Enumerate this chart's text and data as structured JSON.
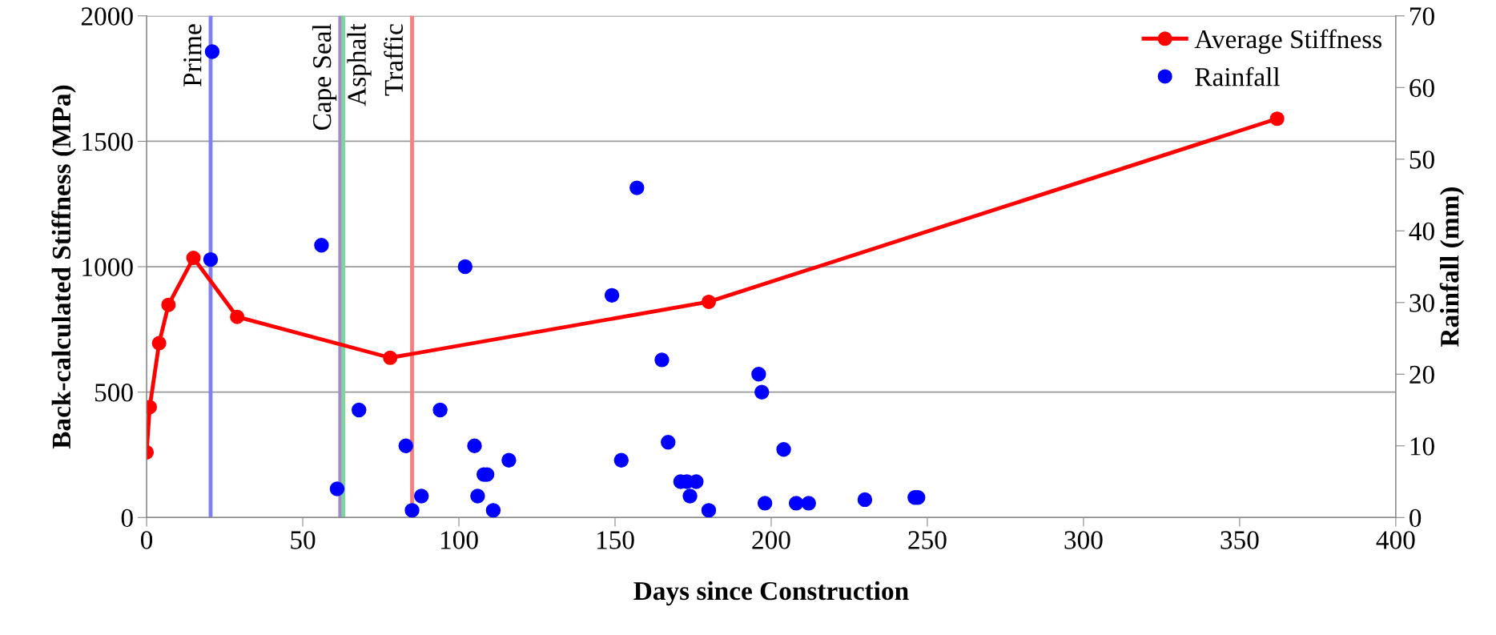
{
  "chart_data": {
    "type": "line",
    "xlabel": "Days since Construction",
    "ylabel": "Back-calculated Stiffness (MPa)",
    "y2label": "Rainfall (mm)",
    "xlim": [
      0,
      400
    ],
    "xticks": [
      0,
      50,
      100,
      150,
      200,
      250,
      300,
      350,
      400
    ],
    "ylim": [
      0,
      2000
    ],
    "yticks": [
      0,
      500,
      1000,
      1500,
      2000
    ],
    "y2lim": [
      0,
      70
    ],
    "y2ticks": [
      0,
      10,
      20,
      30,
      40,
      50,
      60,
      70
    ],
    "grid": "y",
    "legend": "top right",
    "series": [
      {
        "name": "Average Stiffness",
        "color": "#ff0000",
        "marker": "circle",
        "line_style": "solid",
        "x": [
          0,
          1,
          4,
          7,
          15,
          29,
          78,
          180,
          362
        ],
        "values": [
          260,
          440,
          695,
          848,
          1035,
          800,
          637,
          860,
          1590
        ]
      },
      {
        "name": "Rainfall",
        "type": "scatter",
        "axis": "y2",
        "color": "#0000ff",
        "marker": "circle",
        "x": [
          21,
          20.5,
          56,
          68,
          94,
          102,
          149,
          157,
          165,
          196,
          197,
          167,
          105,
          83,
          116,
          152,
          204,
          61,
          109,
          108,
          106,
          88,
          171,
          173,
          176,
          174,
          180,
          85,
          111,
          198,
          208,
          212,
          230,
          246,
          247
        ],
        "values": [
          65,
          36,
          38,
          15,
          15,
          35,
          31,
          46,
          22,
          20,
          17.5,
          10.5,
          10,
          10,
          8,
          8,
          9.5,
          4,
          6,
          6,
          3,
          3,
          5,
          5,
          5,
          3,
          1,
          1,
          1,
          2,
          2,
          2,
          2.5,
          2.8,
          2.8
        ]
      }
    ],
    "ref_lines": [
      {
        "axis": "x",
        "value": 20.5,
        "label": "Prime",
        "color": "#8080f4"
      },
      {
        "axis": "x",
        "value": 62,
        "label": "Cape Seal",
        "color": "#a08cc8"
      },
      {
        "axis": "x",
        "value": 63,
        "label": "Asphalt",
        "color": "#80d4a0"
      },
      {
        "axis": "x",
        "value": 85,
        "label": "Traffic",
        "color": "#f48080"
      }
    ]
  }
}
